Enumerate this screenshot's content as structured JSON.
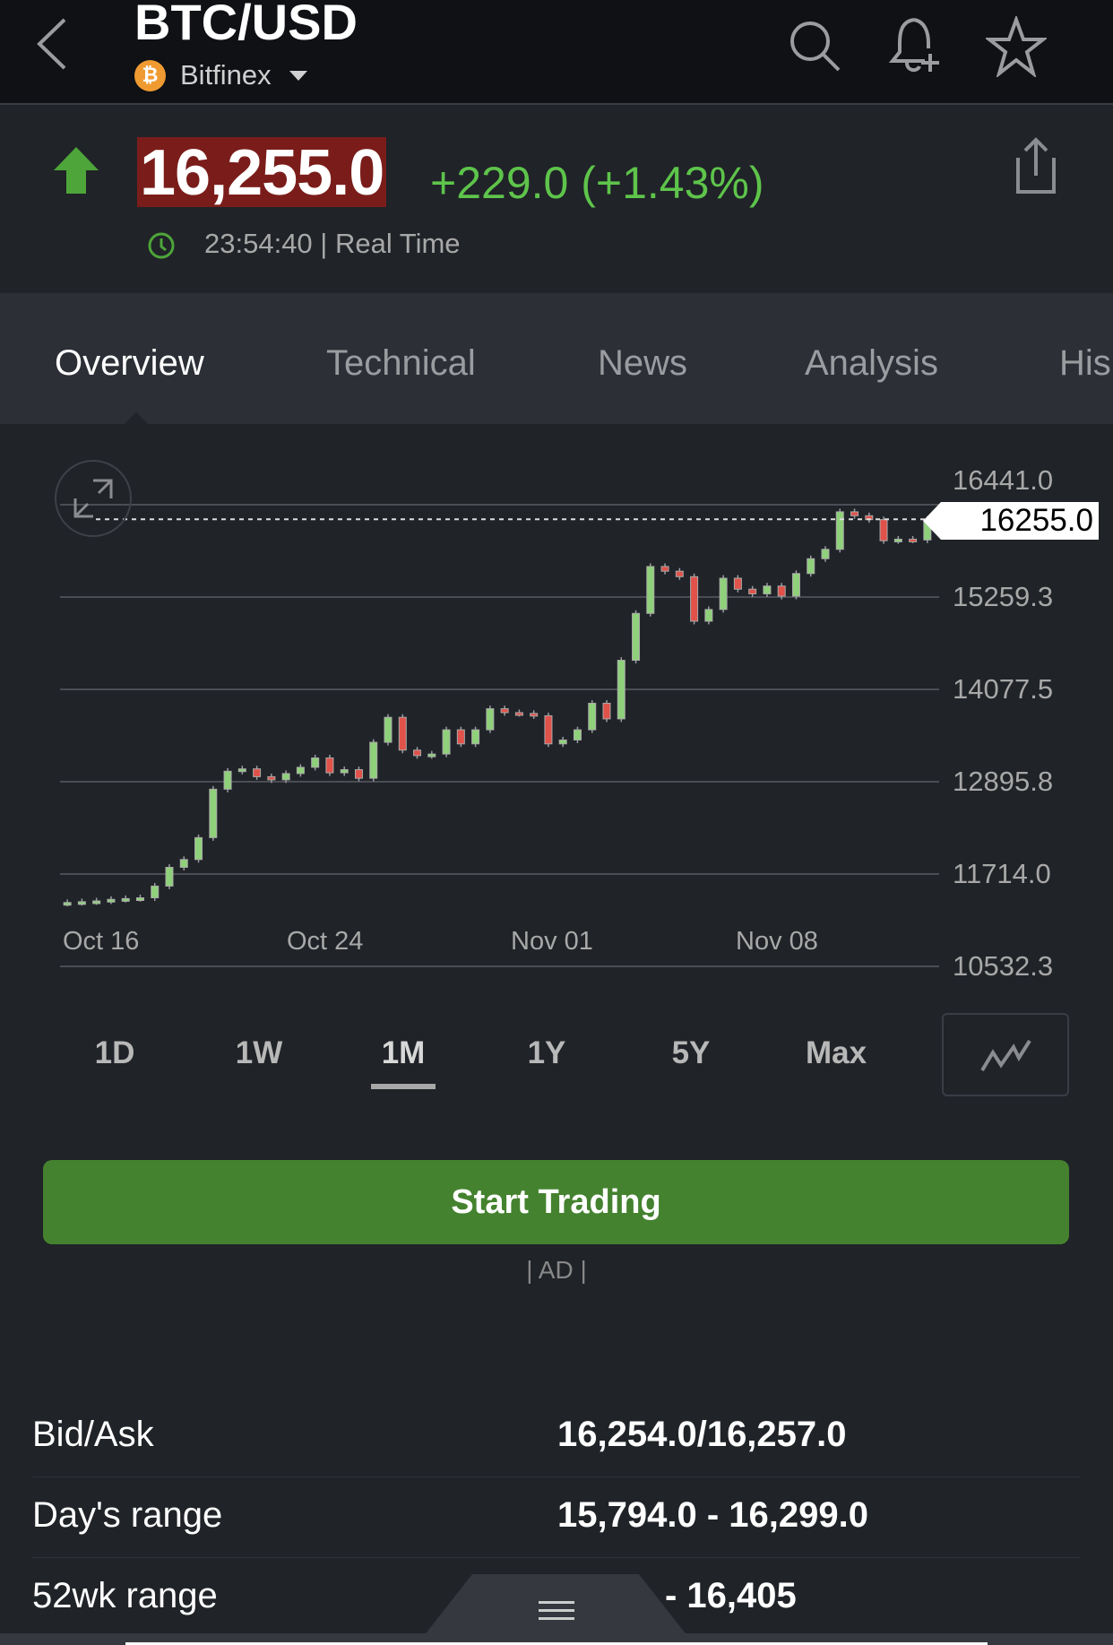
{
  "header": {
    "title": "BTC/USD",
    "exchange": "Bitfinex",
    "coin_symbol": "₿",
    "icons": [
      "back-icon",
      "search-icon",
      "bell-plus-icon",
      "star-icon"
    ]
  },
  "quote": {
    "price": "16,255.0",
    "change": "+229.0 (+1.43%)",
    "time": "23:54:40",
    "time_sep": "|",
    "mode": "Real Time",
    "direction": "up",
    "colors": {
      "up": "#4ea53a",
      "price_bg": "#7a1d1a",
      "change_text": "#5ec44b"
    }
  },
  "tabs": [
    {
      "label": "Overview",
      "active": true
    },
    {
      "label": "Technical"
    },
    {
      "label": "News"
    },
    {
      "label": "Analysis"
    },
    {
      "label": "His"
    }
  ],
  "chart_data": {
    "type": "candlestick",
    "current_price_label": "16255.0",
    "current_price": 16255.0,
    "y_ticks": [
      "16441.0",
      "15259.3",
      "14077.5",
      "12895.8",
      "11714.0",
      "10532.3"
    ],
    "ylim": [
      10532.3,
      16441.0
    ],
    "x_ticks": [
      "Oct 16",
      "Oct 24",
      "Nov 01",
      "Nov 08"
    ],
    "grid": true,
    "colors": {
      "up": "#8fd17a",
      "down": "#e0524a"
    },
    "closes": [
      11350,
      11360,
      11370,
      11390,
      11400,
      11410,
      11560,
      11800,
      11900,
      12180,
      12800,
      13030,
      13060,
      12960,
      12920,
      13000,
      13080,
      13200,
      13010,
      13050,
      12940,
      13400,
      13720,
      13300,
      13230,
      13250,
      13560,
      13380,
      13560,
      13830,
      13780,
      13770,
      13740,
      13380,
      13430,
      13560,
      13900,
      13700,
      14450,
      15050,
      15650,
      15590,
      15520,
      14950,
      15100,
      15500,
      15360,
      15300,
      15400,
      15270,
      15560,
      15750,
      15870,
      16350,
      16300,
      16250,
      15980,
      16000,
      15990,
      16255
    ]
  },
  "ranges": [
    {
      "label": "1D"
    },
    {
      "label": "1W"
    },
    {
      "label": "1M",
      "active": true
    },
    {
      "label": "1Y"
    },
    {
      "label": "5Y"
    },
    {
      "label": "Max"
    }
  ],
  "cta": {
    "label": "Start Trading",
    "ad": "| AD |"
  },
  "stats": [
    {
      "label": "Bid/Ask",
      "value": "16,254.0/16,257.0"
    },
    {
      "label": "Day's range",
      "value": "15,794.0 - 16,299.0"
    },
    {
      "label": "52wk range",
      "value": "- 16,405"
    }
  ]
}
